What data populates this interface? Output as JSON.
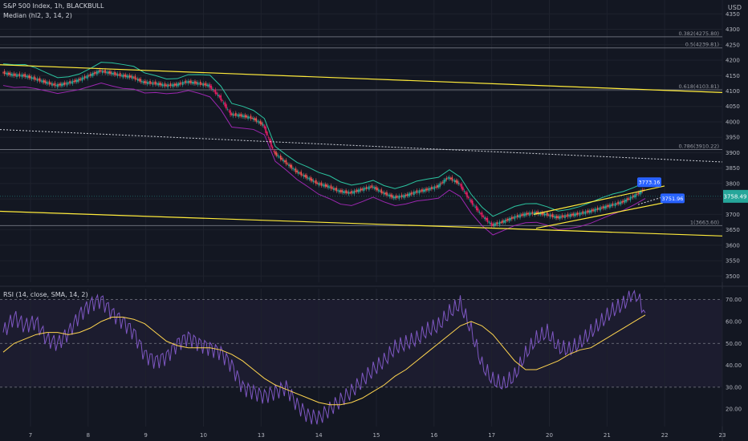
{
  "header": {
    "symbol_line": "S&P 500 Index, 1h, BLACKBULL",
    "indicator_line": "Median (hl2, 3, 14, 2)",
    "currency": "USD"
  },
  "colors": {
    "background": "#131722",
    "grid": "#1e222d",
    "up": "#26a69a",
    "down": "#ef5350",
    "strong_down": "#e91e63",
    "band_upper": "#2bc4a0",
    "band_lower": "#9c27b0",
    "trendline": "#ffeb3b",
    "fib": "#787b86",
    "rsi_line": "#7e57c2",
    "rsi_ma": "#ffd54f",
    "label_blue": "#2962ff"
  },
  "chart_data": [
    {
      "type": "candlestick",
      "title": "S&P 500 Index, 1h, BLACKBULL",
      "x_ticks": [
        "7",
        "8",
        "9",
        "10",
        "13",
        "14",
        "15",
        "16",
        "17",
        "20",
        "21",
        "22",
        "23"
      ],
      "y_ticks": [
        3500,
        3550,
        3600,
        3650,
        3700,
        3750,
        3800,
        3850,
        3900,
        3950,
        4000,
        4050,
        4100,
        4150,
        4200,
        4250,
        4300,
        4350
      ],
      "ylim": [
        3480,
        4395
      ],
      "fib_levels": [
        {
          "label": "0.382(4275.80)",
          "value": 4275.8
        },
        {
          "label": "0.5(4239.81)",
          "value": 4239.81
        },
        {
          "label": "0.618(4103.81)",
          "value": 4103.81
        },
        {
          "label": "0.786(3910.22)",
          "value": 3910.22
        },
        {
          "label": "1(3663.60)",
          "value": 3663.6
        }
      ],
      "price_marker": {
        "label": "3758.49",
        "value": 3758.49
      },
      "callouts": [
        {
          "label": "3773.16",
          "value": 3773.16
        },
        {
          "label": "3751.96",
          "value": 3751.96
        }
      ],
      "series": [
        {
          "name": "Median (hl2, 3, 14, 2)",
          "values": [
            4160,
            4152,
            4150,
            4140,
            4128,
            4118,
            4125,
            4135,
            4150,
            4165,
            4158,
            4150,
            4145,
            4128,
            4125,
            4118,
            4120,
            4130,
            4125,
            4118,
            4080,
            4025,
            4020,
            4012,
            3990,
            3900,
            3870,
            3840,
            3820,
            3800,
            3790,
            3775,
            3770,
            3780,
            3790,
            3770,
            3755,
            3760,
            3772,
            3780,
            3790,
            3820,
            3800,
            3745,
            3700,
            3665,
            3676,
            3690,
            3700,
            3705,
            3700,
            3690,
            3696,
            3702,
            3710,
            3720,
            3730,
            3740,
            3758,
            3780
          ]
        }
      ]
    },
    {
      "type": "line",
      "title": "RSI (14, close, SMA, 14, 2)",
      "y_ticks": [
        20,
        30,
        40,
        50,
        60,
        70
      ],
      "ylim": [
        12,
        75
      ],
      "levels": [
        30,
        50,
        70
      ],
      "series": [
        {
          "name": "RSI",
          "values": [
            55,
            62,
            58,
            60,
            52,
            50,
            55,
            63,
            68,
            70,
            64,
            60,
            55,
            45,
            42,
            44,
            50,
            53,
            50,
            48,
            46,
            40,
            30,
            28,
            26,
            28,
            30,
            22,
            17,
            16,
            20,
            24,
            28,
            33,
            38,
            42,
            48,
            50,
            52,
            56,
            58,
            64,
            68,
            56,
            40,
            33,
            31,
            35,
            45,
            52,
            55,
            48,
            47,
            50,
            55,
            60,
            65,
            68,
            74,
            64
          ]
        },
        {
          "name": "RSI-based MA",
          "values": [
            46,
            50,
            52,
            54,
            55,
            55,
            54,
            55,
            57,
            60,
            62,
            62,
            61,
            59,
            55,
            51,
            49,
            48,
            48,
            48,
            47,
            45,
            42,
            38,
            34,
            31,
            29,
            27,
            25,
            23,
            22,
            22,
            23,
            25,
            28,
            31,
            35,
            38,
            42,
            46,
            50,
            54,
            58,
            60,
            58,
            54,
            48,
            42,
            38,
            38,
            40,
            42,
            45,
            47,
            48,
            51,
            54,
            57,
            60,
            63
          ]
        }
      ]
    }
  ]
}
